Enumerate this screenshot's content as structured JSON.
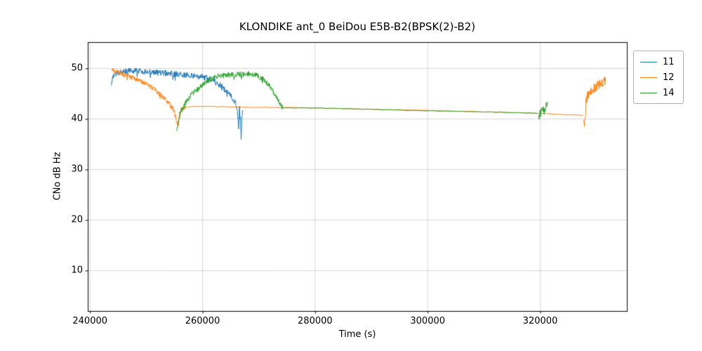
{
  "chart_data": {
    "type": "line",
    "title": "KLONDIKE ant_0 BeiDou E5B-B2(BPSK(2)-B2)",
    "xlabel": "Time (s)",
    "ylabel": "CNo dB Hz",
    "xlim": [
      239600,
      335400
    ],
    "ylim": [
      2,
      55.2
    ],
    "x_ticks": [
      240000,
      260000,
      280000,
      300000,
      320000
    ],
    "y_ticks": [
      10,
      20,
      30,
      40,
      50
    ],
    "grid": true,
    "grid_color": "#cccccc",
    "legend_position": "outside-upper-right",
    "series": [
      {
        "name": "11",
        "color": "#1f77b4",
        "segments": [
          {
            "step": 60,
            "noise": 0.6,
            "points": [
              [
                243800,
                47.2
              ],
              [
                244200,
                48.8
              ],
              [
                245000,
                49.2
              ],
              [
                246500,
                49.4
              ],
              [
                248000,
                49.6
              ],
              [
                250000,
                49.3
              ],
              [
                252000,
                49.2
              ],
              [
                254000,
                49.0
              ],
              [
                256000,
                48.8
              ],
              [
                258000,
                48.6
              ],
              [
                259500,
                48.4
              ],
              [
                261000,
                48.0
              ],
              [
                262000,
                47.6
              ],
              [
                263000,
                46.8
              ],
              [
                264000,
                45.8
              ],
              [
                264800,
                44.8
              ],
              [
                265400,
                44.0
              ],
              [
                265900,
                43.2
              ],
              [
                266200,
                41.0
              ],
              [
                266400,
                38.5
              ],
              [
                266550,
                42.0
              ],
              [
                266700,
                40.0
              ],
              [
                266850,
                36.5
              ],
              [
                267000,
                40.0
              ],
              [
                267150,
                41.5
              ]
            ]
          }
        ]
      },
      {
        "name": "12",
        "color": "#ff7f0e",
        "segments": [
          {
            "step": 60,
            "noise": 0.5,
            "points": [
              [
                243900,
                49.6
              ],
              [
                245000,
                49.2
              ],
              [
                246000,
                48.8
              ],
              [
                247000,
                48.4
              ],
              [
                248000,
                48.0
              ],
              [
                249000,
                47.5
              ],
              [
                250000,
                47.0
              ],
              [
                251000,
                46.2
              ],
              [
                252000,
                45.3
              ],
              [
                253000,
                44.3
              ],
              [
                254000,
                43.2
              ],
              [
                254800,
                42.0
              ],
              [
                255300,
                40.0
              ],
              [
                255600,
                38.8
              ],
              [
                255900,
                41.0
              ],
              [
                256300,
                41.8
              ],
              [
                257000,
                42.3
              ]
            ]
          },
          {
            "step": 500,
            "noise": 0.05,
            "points": [
              [
                257000,
                42.4
              ],
              [
                260000,
                42.5
              ],
              [
                270000,
                42.3
              ],
              [
                280000,
                42.2
              ],
              [
                290000,
                41.9
              ],
              [
                300000,
                41.7
              ],
              [
                310000,
                41.4
              ],
              [
                320000,
                41.1
              ],
              [
                327600,
                40.7
              ]
            ]
          },
          {
            "step": 50,
            "noise": 1.0,
            "points": [
              [
                327700,
                40.5
              ],
              [
                327900,
                38.9
              ],
              [
                328100,
                43.0
              ],
              [
                328400,
                44.5
              ],
              [
                328800,
                45.2
              ],
              [
                329300,
                45.8
              ],
              [
                330000,
                46.3
              ],
              [
                330700,
                47.0
              ],
              [
                331300,
                47.6
              ],
              [
                331600,
                47.4
              ]
            ]
          }
        ]
      },
      {
        "name": "14",
        "color": "#2ca02c",
        "segments": [
          {
            "step": 60,
            "noise": 0.55,
            "points": [
              [
                255400,
                37.3
              ],
              [
                255700,
                39.5
              ],
              [
                256000,
                40.8
              ],
              [
                256400,
                42.0
              ],
              [
                257000,
                43.2
              ],
              [
                258000,
                44.8
              ],
              [
                259000,
                45.8
              ],
              [
                260000,
                46.8
              ],
              [
                261000,
                47.6
              ],
              [
                262000,
                48.2
              ],
              [
                263000,
                48.5
              ],
              [
                264500,
                48.7
              ],
              [
                266000,
                48.8
              ],
              [
                267500,
                48.9
              ],
              [
                269000,
                48.8
              ],
              [
                270000,
                48.4
              ],
              [
                270800,
                47.8
              ],
              [
                271500,
                47.0
              ],
              [
                272200,
                46.0
              ],
              [
                272800,
                45.0
              ],
              [
                273300,
                43.8
              ],
              [
                273800,
                42.8
              ],
              [
                274200,
                42.2
              ]
            ]
          },
          {
            "step": 500,
            "noise": 0.05,
            "points": [
              [
                274200,
                42.2
              ],
              [
                280000,
                42.15
              ],
              [
                290000,
                41.9
              ],
              [
                300000,
                41.6
              ],
              [
                310000,
                41.4
              ],
              [
                319500,
                41.15
              ]
            ]
          },
          {
            "step": 50,
            "noise": 0.9,
            "points": [
              [
                319700,
                40.3
              ],
              [
                320000,
                41.0
              ],
              [
                320300,
                42.0
              ],
              [
                320600,
                41.5
              ],
              [
                321000,
                42.5
              ],
              [
                321300,
                43.3
              ]
            ]
          }
        ]
      }
    ]
  }
}
